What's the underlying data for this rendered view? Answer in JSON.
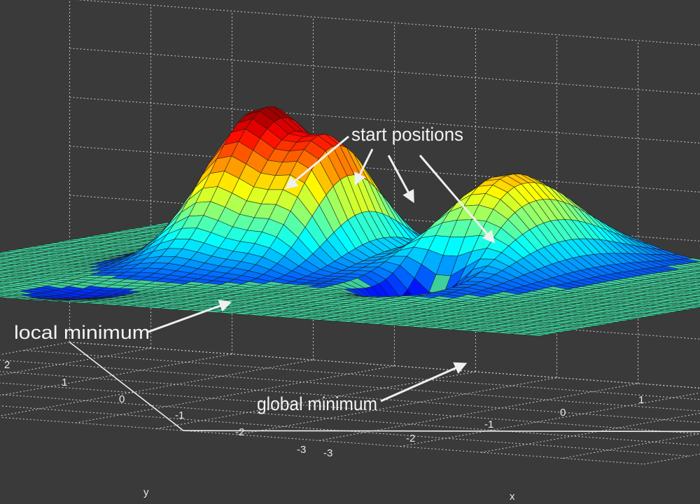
{
  "chart_data": {
    "type": "surface",
    "title": "",
    "xlabel": "x",
    "ylabel": "y",
    "zlabel": "",
    "xlim": [
      -3,
      3
    ],
    "ylim": [
      -3,
      3
    ],
    "x_ticks": [
      "-3",
      "-2",
      "-1",
      "0",
      "1"
    ],
    "y_ticks": [
      "2",
      "1",
      "0",
      "-1",
      "-2",
      "-3"
    ],
    "grid": true,
    "colormap": "jet",
    "grid_resolution": 49,
    "annotations": [
      {
        "id": "start",
        "text": "start positions",
        "count": 4
      },
      {
        "id": "local",
        "text": "local minimum"
      },
      {
        "id": "global",
        "text": "global minimum"
      }
    ]
  },
  "colors": {
    "background": "#3a3a3a",
    "grid": "#d8d8d8",
    "mesh": "#1a1a1a",
    "text": "#f2f2f2"
  }
}
